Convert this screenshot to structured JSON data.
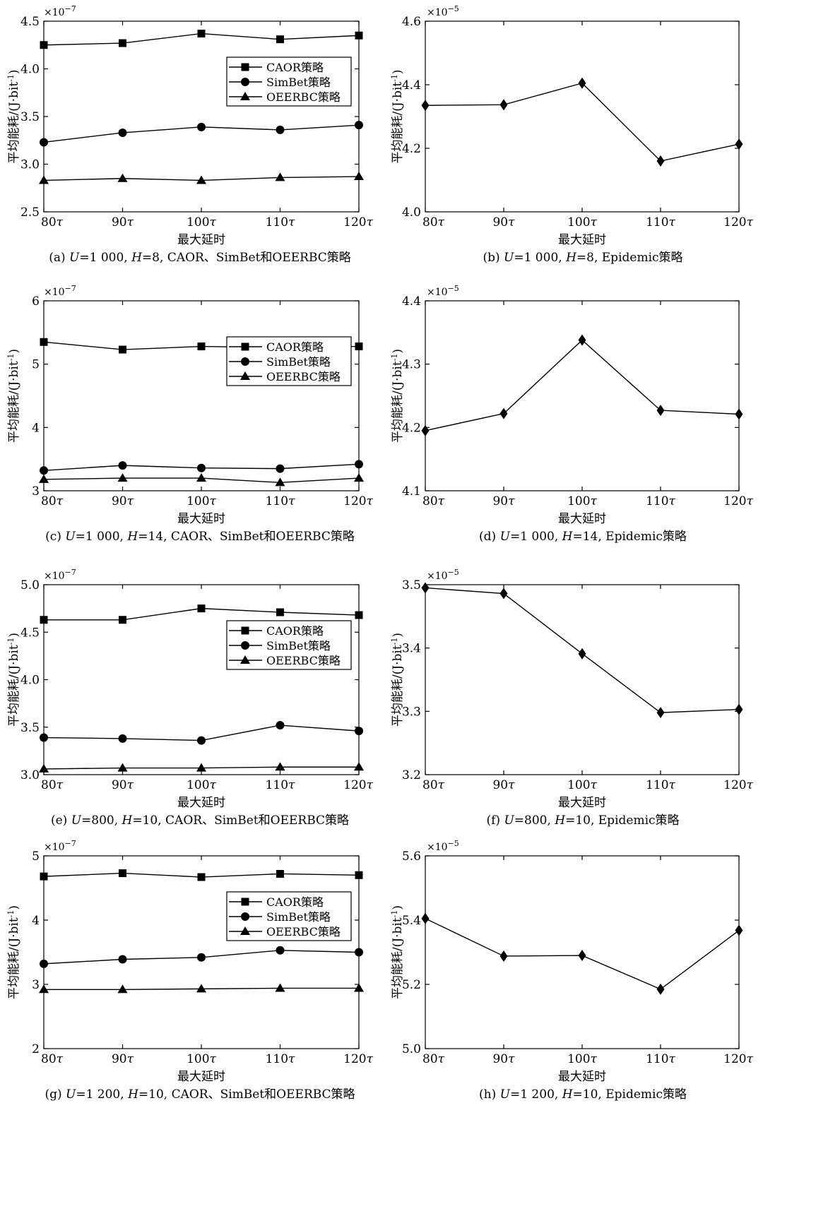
{
  "xlabel": "最大延时",
  "ylabel": "平均能耗/(J·bit",
  "ylabel_sup": "-1",
  "ylabel_close": ")",
  "tau": "τ",
  "chart_data": [
    {
      "id": "a",
      "type": "line",
      "caption": {
        "pre": "(a) ",
        "v1": "U",
        "m1": "=1 000, ",
        "v2": "H",
        "m2": "=8, CAOR、SimBet和OEERBC策略"
      },
      "multiplier": {
        "base": "×10",
        "exp": "−7"
      },
      "categories": [
        "80",
        "90",
        "100",
        "110",
        "120"
      ],
      "ylim": [
        2.5,
        4.5
      ],
      "ticks": [
        "2.5",
        "3.0",
        "3.5",
        "4.0",
        "4.5"
      ],
      "tick_values": [
        2.5,
        3.0,
        3.5,
        4.0,
        4.5
      ],
      "legend": {
        "position": "right"
      },
      "series": [
        {
          "name": "CAOR策略",
          "marker": "square",
          "values": [
            4.25,
            4.27,
            4.37,
            4.31,
            4.35
          ]
        },
        {
          "name": "SimBet策略",
          "marker": "circle",
          "values": [
            3.23,
            3.33,
            3.39,
            3.36,
            3.41
          ]
        },
        {
          "name": "OEERBC策略",
          "marker": "triangle",
          "values": [
            2.83,
            2.85,
            2.83,
            2.86,
            2.87
          ]
        }
      ]
    },
    {
      "id": "b",
      "type": "line",
      "caption": {
        "pre": "(b) ",
        "v1": "U",
        "m1": "=1 000, ",
        "v2": "H",
        "m2": "=8, Epidemic策略"
      },
      "multiplier": {
        "base": "×10",
        "exp": "−5"
      },
      "categories": [
        "80",
        "90",
        "100",
        "110",
        "120"
      ],
      "ylim": [
        4.0,
        4.6
      ],
      "ticks": [
        "4.0",
        "4.2",
        "4.4",
        "4.6"
      ],
      "tick_values": [
        4.0,
        4.2,
        4.4,
        4.6
      ],
      "series": [
        {
          "marker": "diamond",
          "values": [
            4.335,
            4.337,
            4.405,
            4.16,
            4.213
          ]
        }
      ]
    },
    {
      "id": "c",
      "type": "line",
      "caption": {
        "pre": "(c) ",
        "v1": "U",
        "m1": "=1 000, ",
        "v2": "H",
        "m2": "=14, CAOR、SimBet和OEERBC策略"
      },
      "multiplier": {
        "base": "×10",
        "exp": "−7"
      },
      "categories": [
        "80",
        "90",
        "100",
        "110",
        "120"
      ],
      "ylim": [
        3,
        6
      ],
      "ticks": [
        "3",
        "4",
        "5",
        "6"
      ],
      "tick_values": [
        3,
        4,
        5,
        6
      ],
      "legend": {
        "position": "right"
      },
      "series": [
        {
          "name": "CAOR策略",
          "marker": "square",
          "values": [
            5.35,
            5.23,
            5.28,
            5.26,
            5.28
          ]
        },
        {
          "name": "SimBet策略",
          "marker": "circle",
          "values": [
            3.32,
            3.4,
            3.36,
            3.35,
            3.42
          ]
        },
        {
          "name": "OEERBC策略",
          "marker": "triangle",
          "values": [
            3.18,
            3.2,
            3.2,
            3.13,
            3.2
          ]
        }
      ]
    },
    {
      "id": "d",
      "type": "line",
      "caption": {
        "pre": "(d) ",
        "v1": "U",
        "m1": "=1 000, ",
        "v2": "H",
        "m2": "=14, Epidemic策略"
      },
      "multiplier": {
        "base": "×10",
        "exp": "−5"
      },
      "categories": [
        "80",
        "90",
        "100",
        "110",
        "120"
      ],
      "ylim": [
        4.1,
        4.4
      ],
      "ticks": [
        "4.1",
        "4.2",
        "4.3",
        "4.4"
      ],
      "tick_values": [
        4.1,
        4.2,
        4.3,
        4.4
      ],
      "series": [
        {
          "marker": "diamond",
          "values": [
            4.195,
            4.222,
            4.338,
            4.227,
            4.221
          ]
        }
      ]
    },
    {
      "id": "e",
      "type": "line",
      "caption": {
        "pre": "(e) ",
        "v1": "U",
        "m1": "=800, ",
        "v2": "H",
        "m2": "=10, CAOR、SimBet和OEERBC策略"
      },
      "multiplier": {
        "base": "×10",
        "exp": "−7"
      },
      "categories": [
        "80",
        "90",
        "100",
        "110",
        "120"
      ],
      "ylim": [
        3.0,
        5.0
      ],
      "ticks": [
        "3.0",
        "3.5",
        "4.0",
        "4.5",
        "5.0"
      ],
      "tick_values": [
        3.0,
        3.5,
        4.0,
        4.5,
        5.0
      ],
      "legend": {
        "position": "right"
      },
      "series": [
        {
          "name": "CAOR策略",
          "marker": "square",
          "values": [
            4.63,
            4.63,
            4.75,
            4.71,
            4.68
          ]
        },
        {
          "name": "SimBet策略",
          "marker": "circle",
          "values": [
            3.39,
            3.38,
            3.36,
            3.52,
            3.46
          ]
        },
        {
          "name": "OEERBC策略",
          "marker": "triangle",
          "values": [
            3.06,
            3.07,
            3.07,
            3.08,
            3.08
          ]
        }
      ]
    },
    {
      "id": "f",
      "type": "line",
      "caption": {
        "pre": "(f) ",
        "v1": "U",
        "m1": "=800, ",
        "v2": "H",
        "m2": "=10, Epidemic策略"
      },
      "multiplier": {
        "base": "×10",
        "exp": "−5"
      },
      "categories": [
        "80",
        "90",
        "100",
        "110",
        "120"
      ],
      "ylim": [
        3.2,
        3.5
      ],
      "ticks": [
        "3.2",
        "3.3",
        "3.4",
        "3.5"
      ],
      "tick_values": [
        3.2,
        3.3,
        3.4,
        3.5
      ],
      "series": [
        {
          "marker": "diamond",
          "values": [
            3.495,
            3.486,
            3.391,
            3.298,
            3.303
          ]
        }
      ]
    },
    {
      "id": "g",
      "type": "line",
      "caption": {
        "pre": "(g) ",
        "v1": "U",
        "m1": "=1 200, ",
        "v2": "H",
        "m2": "=10, CAOR、SimBet和OEERBC策略"
      },
      "multiplier": {
        "base": "×10",
        "exp": "−7"
      },
      "categories": [
        "80",
        "90",
        "100",
        "110",
        "120"
      ],
      "ylim": [
        2,
        5
      ],
      "ticks": [
        "2",
        "3",
        "4",
        "5"
      ],
      "tick_values": [
        2,
        3,
        4,
        5
      ],
      "legend": {
        "position": "right"
      },
      "series": [
        {
          "name": "CAOR策略",
          "marker": "square",
          "values": [
            4.68,
            4.73,
            4.67,
            4.72,
            4.7
          ]
        },
        {
          "name": "SimBet策略",
          "marker": "circle",
          "values": [
            3.32,
            3.39,
            3.42,
            3.53,
            3.5
          ]
        },
        {
          "name": "OEERBC策略",
          "marker": "triangle",
          "values": [
            2.92,
            2.92,
            2.93,
            2.94,
            2.94
          ]
        }
      ]
    },
    {
      "id": "h",
      "type": "line",
      "caption": {
        "pre": "(h) ",
        "v1": "U",
        "m1": "=1 200, ",
        "v2": "H",
        "m2": "=10, Epidemic策略"
      },
      "multiplier": {
        "base": "×10",
        "exp": "−5"
      },
      "categories": [
        "80",
        "90",
        "100",
        "110",
        "120"
      ],
      "ylim": [
        5.0,
        5.6
      ],
      "ticks": [
        "5.0",
        "5.2",
        "5.4",
        "5.6"
      ],
      "tick_values": [
        5.0,
        5.2,
        5.4,
        5.6
      ],
      "series": [
        {
          "marker": "diamond",
          "values": [
            5.405,
            5.288,
            5.29,
            5.185,
            5.368
          ]
        }
      ]
    }
  ]
}
